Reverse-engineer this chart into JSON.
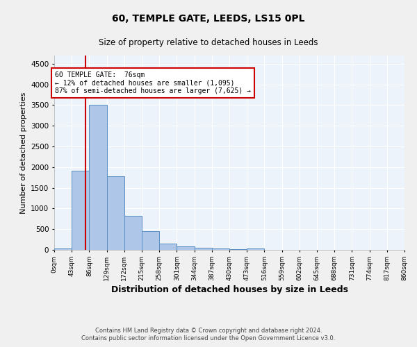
{
  "title": "60, TEMPLE GATE, LEEDS, LS15 0PL",
  "subtitle": "Size of property relative to detached houses in Leeds",
  "xlabel": "Distribution of detached houses by size in Leeds",
  "ylabel": "Number of detached properties",
  "bar_edges": [
    0,
    43,
    86,
    129,
    172,
    215,
    258,
    301,
    344,
    387,
    430,
    473,
    516,
    559,
    602,
    645,
    688,
    731,
    774,
    817,
    860
  ],
  "bar_heights": [
    30,
    1920,
    3500,
    1780,
    820,
    450,
    155,
    90,
    50,
    35,
    25,
    30,
    0,
    0,
    0,
    0,
    0,
    0,
    0,
    0
  ],
  "tick_labels": [
    "0sqm",
    "43sqm",
    "86sqm",
    "129sqm",
    "172sqm",
    "215sqm",
    "258sqm",
    "301sqm",
    "344sqm",
    "387sqm",
    "430sqm",
    "473sqm",
    "516sqm",
    "559sqm",
    "602sqm",
    "645sqm",
    "688sqm",
    "731sqm",
    "774sqm",
    "817sqm",
    "860sqm"
  ],
  "bar_color": "#aec6e8",
  "bar_edge_color": "#5a8fc2",
  "property_line_x": 76,
  "property_line_color": "#cc0000",
  "annotation_text": "60 TEMPLE GATE:  76sqm\n← 12% of detached houses are smaller (1,095)\n87% of semi-detached houses are larger (7,625) →",
  "annotation_box_color": "#ffffff",
  "annotation_box_edge": "#cc0000",
  "ylim": [
    0,
    4700
  ],
  "bg_color": "#edf3fb",
  "grid_color": "#ffffff",
  "fig_bg_color": "#f0f0f0",
  "footer_line1": "Contains HM Land Registry data © Crown copyright and database right 2024.",
  "footer_line2": "Contains public sector information licensed under the Open Government Licence v3.0."
}
